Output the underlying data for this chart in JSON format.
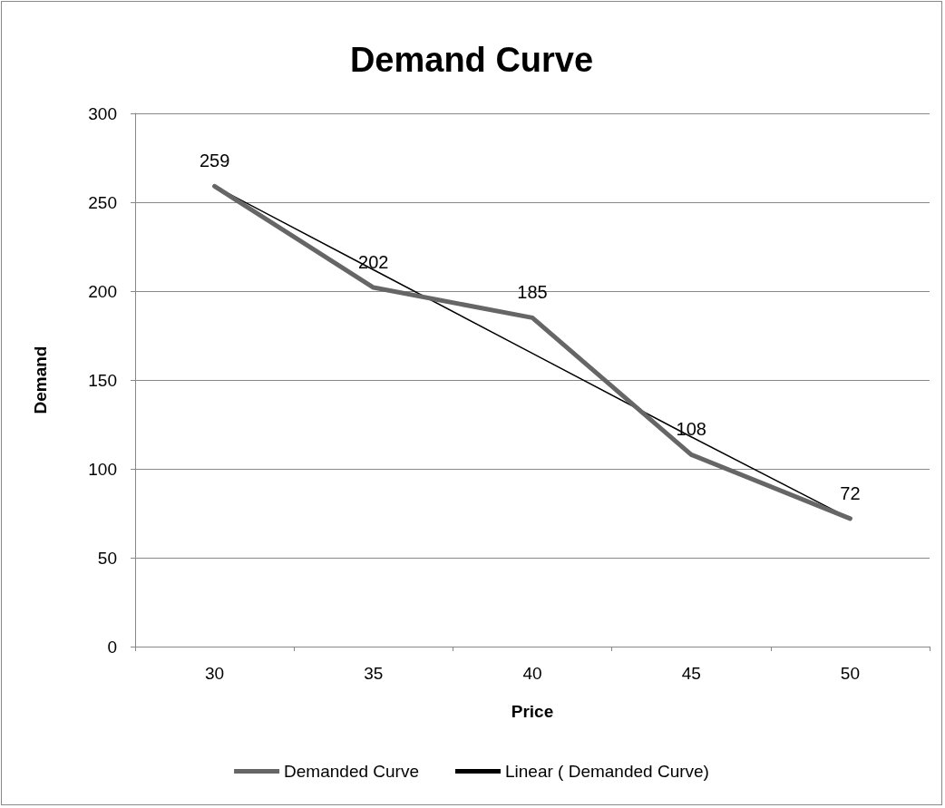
{
  "chart_data": {
    "type": "line",
    "title": "Demand Curve",
    "xlabel": "Price",
    "ylabel": "Demand",
    "categories": [
      "30",
      "35",
      "40",
      "45",
      "50"
    ],
    "series": [
      {
        "name": "Demanded Curve",
        "color": "#666666",
        "values": [
          259,
          202,
          185,
          108,
          72
        ],
        "value_labels": [
          "259",
          "202",
          "185",
          "108",
          "72"
        ]
      },
      {
        "name": "Linear ( Demanded Curve)",
        "color": "#000000",
        "values": [
          259,
          212,
          165,
          118,
          72
        ]
      }
    ],
    "ylim": [
      0,
      300
    ],
    "yticks": [
      0,
      50,
      100,
      150,
      200,
      250,
      300
    ],
    "grid": "y",
    "legend": "bottom",
    "marker": "none"
  }
}
